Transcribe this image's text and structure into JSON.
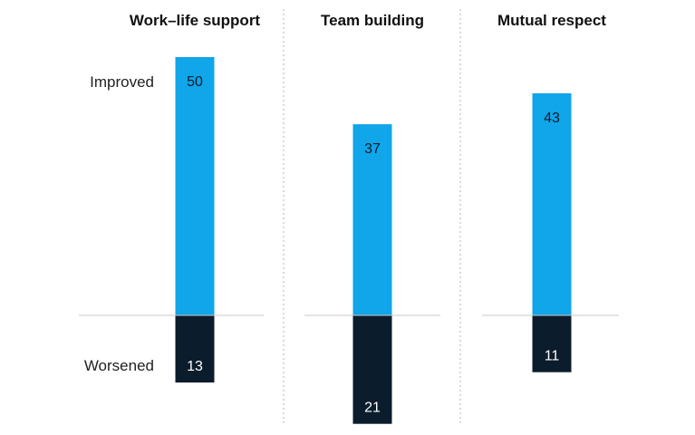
{
  "chart_data": {
    "type": "bar",
    "categories": [
      "Work–life support",
      "Team building",
      "Mutual respect"
    ],
    "row_labels": {
      "improved": "Improved",
      "worsened": "Worsened"
    },
    "series": [
      {
        "key": "improved",
        "values": [
          50,
          37,
          43
        ]
      },
      {
        "key": "worsened",
        "values": [
          13,
          21,
          11
        ]
      }
    ],
    "colors": {
      "improved": "#11a5e9",
      "worsened": "#0b1c2c",
      "improved_text": "#0b1c2c",
      "worsened_text": "#ffffff"
    },
    "grid": false,
    "legend": "none"
  }
}
